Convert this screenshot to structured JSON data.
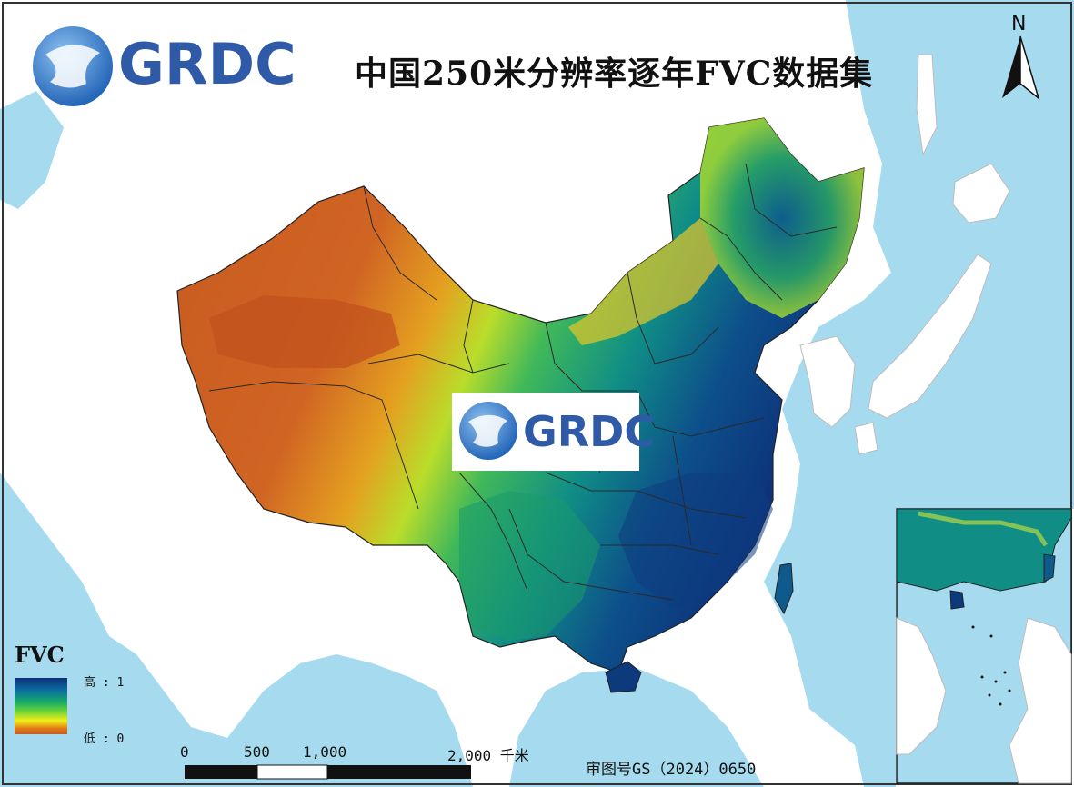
{
  "title": "中国250米分辨率逐年FVC数据集",
  "logo_text": "GRDC",
  "north_label": "N",
  "legend": {
    "title": "FVC",
    "high_label": "高 : 1",
    "low_label": "低 : 0",
    "colors": [
      "#0d2f78",
      "#0b6fa0",
      "#16a86a",
      "#62d138",
      "#f2ef18",
      "#e27916",
      "#c75a20"
    ]
  },
  "scale_bar": {
    "labels": [
      "0",
      "500",
      "1,000",
      "2,000 千米"
    ]
  },
  "approval_number": "审图号GS（2024）0650",
  "colors": {
    "sea": "#a6dbef",
    "land": "#ffffff",
    "accent_logo": "#2f5aa8"
  }
}
